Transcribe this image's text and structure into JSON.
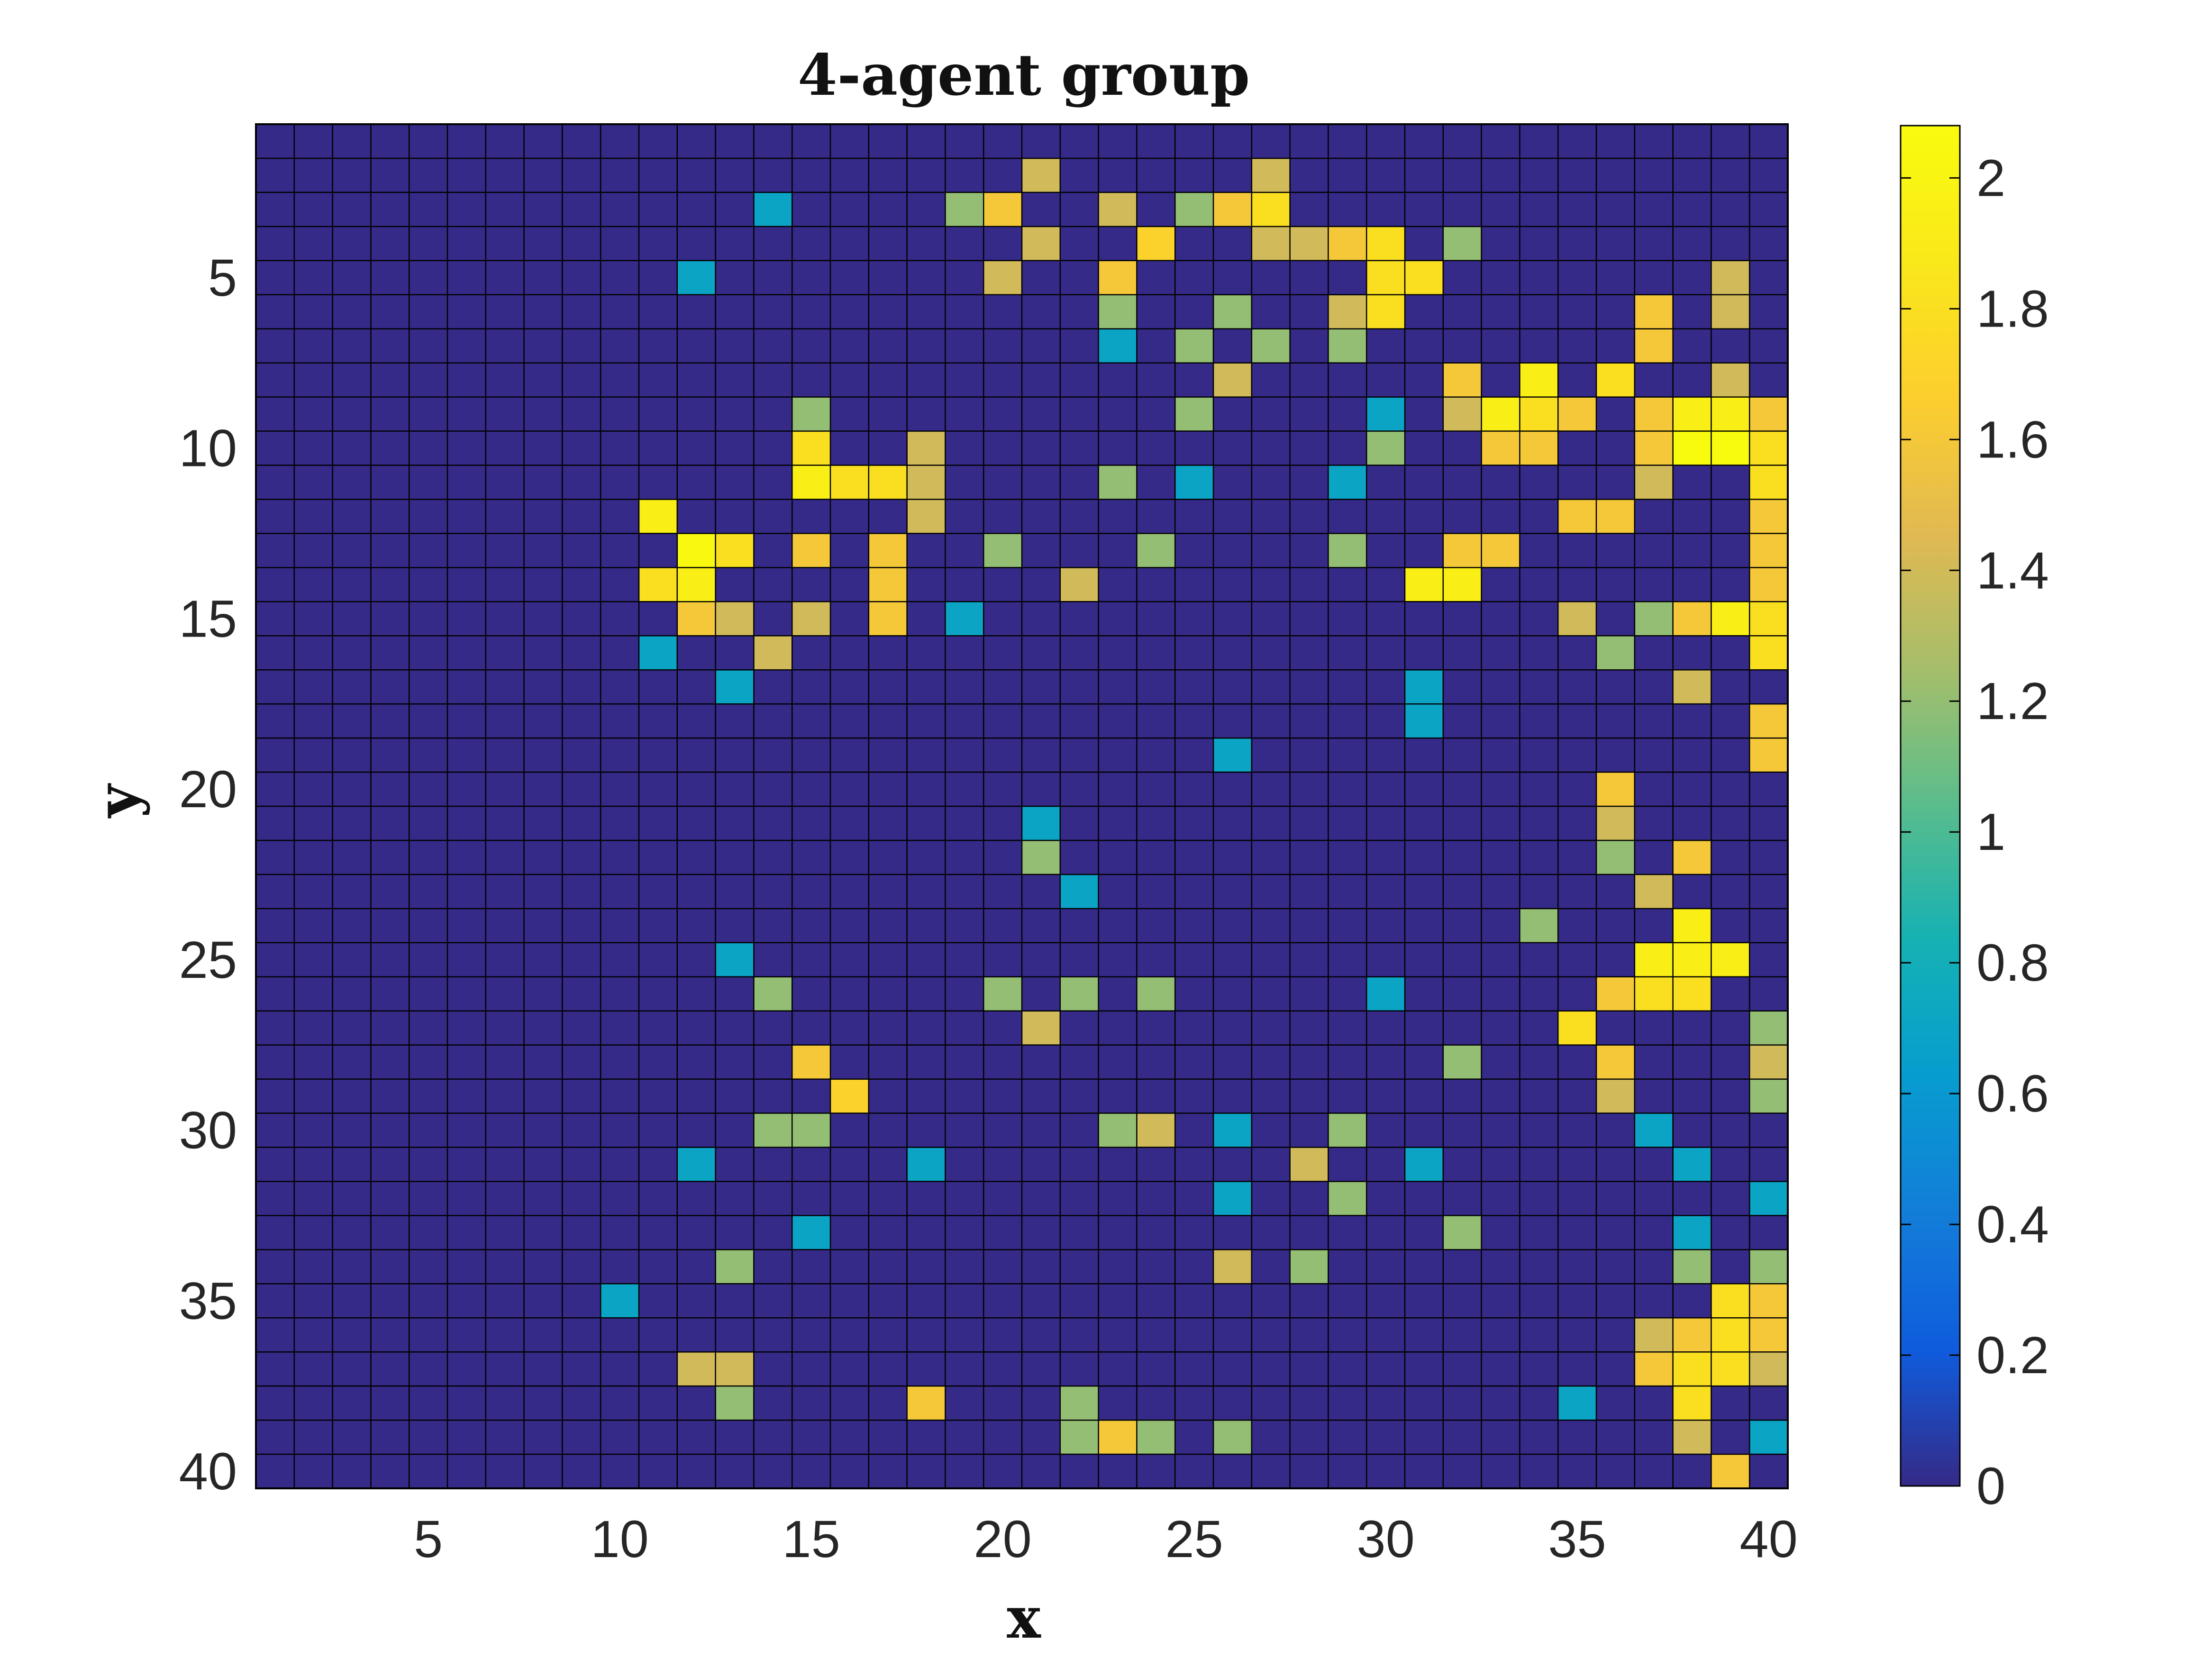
{
  "chart_data": {
    "type": "heatmap",
    "title": "4-agent group",
    "xlabel": "x",
    "ylabel": "y",
    "x_range": [
      1,
      40
    ],
    "y_range": [
      1,
      40
    ],
    "y_axis_direction": "top-to-bottom",
    "grid": true,
    "x_ticks": [
      "5",
      "10",
      "15",
      "20",
      "25",
      "30",
      "35",
      "40"
    ],
    "y_ticks": [
      "5",
      "10",
      "15",
      "20",
      "25",
      "30",
      "35",
      "40"
    ],
    "colorbar": {
      "colormap": "parula",
      "range": [
        0,
        2.08
      ],
      "ticks": [
        "0",
        "0.2",
        "0.4",
        "0.6",
        "0.8",
        "1",
        "1.2",
        "1.4",
        "1.6",
        "1.8",
        "2"
      ]
    },
    "default_value": 0,
    "cells": [
      [
        21,
        2,
        1.4
      ],
      [
        27,
        2,
        1.4
      ],
      [
        14,
        3,
        0.7
      ],
      [
        19,
        3,
        1.2
      ],
      [
        20,
        3,
        1.6
      ],
      [
        23,
        3,
        1.4
      ],
      [
        25,
        3,
        1.2
      ],
      [
        26,
        3,
        1.6
      ],
      [
        27,
        3,
        1.8
      ],
      [
        21,
        4,
        1.4
      ],
      [
        24,
        4,
        1.7
      ],
      [
        27,
        4,
        1.4
      ],
      [
        28,
        4,
        1.4
      ],
      [
        29,
        4,
        1.6
      ],
      [
        30,
        4,
        1.8
      ],
      [
        32,
        4,
        1.2
      ],
      [
        12,
        5,
        0.7
      ],
      [
        20,
        5,
        1.4
      ],
      [
        23,
        5,
        1.6
      ],
      [
        30,
        5,
        1.8
      ],
      [
        31,
        5,
        1.8
      ],
      [
        39,
        5,
        1.4
      ],
      [
        23,
        6,
        1.2
      ],
      [
        26,
        6,
        1.2
      ],
      [
        29,
        6,
        1.4
      ],
      [
        30,
        6,
        1.8
      ],
      [
        37,
        6,
        1.6
      ],
      [
        39,
        6,
        1.4
      ],
      [
        23,
        7,
        0.7
      ],
      [
        25,
        7,
        1.2
      ],
      [
        27,
        7,
        1.2
      ],
      [
        29,
        7,
        1.2
      ],
      [
        37,
        7,
        1.6
      ],
      [
        26,
        8,
        1.4
      ],
      [
        32,
        8,
        1.6
      ],
      [
        34,
        8,
        1.95
      ],
      [
        36,
        8,
        1.8
      ],
      [
        39,
        8,
        1.4
      ],
      [
        15,
        9,
        1.2
      ],
      [
        25,
        9,
        1.2
      ],
      [
        30,
        9,
        0.7
      ],
      [
        32,
        9,
        1.4
      ],
      [
        33,
        9,
        1.95
      ],
      [
        34,
        9,
        1.8
      ],
      [
        35,
        9,
        1.6
      ],
      [
        37,
        9,
        1.6
      ],
      [
        38,
        9,
        1.95
      ],
      [
        39,
        9,
        1.95
      ],
      [
        40,
        9,
        1.6
      ],
      [
        15,
        10,
        1.8
      ],
      [
        18,
        10,
        1.4
      ],
      [
        30,
        10,
        1.2
      ],
      [
        33,
        10,
        1.6
      ],
      [
        34,
        10,
        1.6
      ],
      [
        37,
        10,
        1.6
      ],
      [
        38,
        10,
        2.08
      ],
      [
        39,
        10,
        2.08
      ],
      [
        40,
        10,
        1.8
      ],
      [
        15,
        11,
        1.95
      ],
      [
        16,
        11,
        1.8
      ],
      [
        17,
        11,
        1.8
      ],
      [
        18,
        11,
        1.4
      ],
      [
        23,
        11,
        1.2
      ],
      [
        25,
        11,
        0.7
      ],
      [
        29,
        11,
        0.7
      ],
      [
        37,
        11,
        1.4
      ],
      [
        40,
        11,
        1.8
      ],
      [
        11,
        12,
        1.95
      ],
      [
        18,
        12,
        1.4
      ],
      [
        35,
        12,
        1.6
      ],
      [
        36,
        12,
        1.6
      ],
      [
        40,
        12,
        1.6
      ],
      [
        12,
        13,
        2.05
      ],
      [
        13,
        13,
        1.8
      ],
      [
        15,
        13,
        1.6
      ],
      [
        17,
        13,
        1.6
      ],
      [
        20,
        13,
        1.2
      ],
      [
        24,
        13,
        1.2
      ],
      [
        29,
        13,
        1.2
      ],
      [
        32,
        13,
        1.6
      ],
      [
        33,
        13,
        1.6
      ],
      [
        40,
        13,
        1.6
      ],
      [
        11,
        14,
        1.8
      ],
      [
        12,
        14,
        1.95
      ],
      [
        17,
        14,
        1.6
      ],
      [
        22,
        14,
        1.4
      ],
      [
        31,
        14,
        1.95
      ],
      [
        32,
        14,
        1.95
      ],
      [
        40,
        14,
        1.6
      ],
      [
        12,
        15,
        1.6
      ],
      [
        13,
        15,
        1.4
      ],
      [
        15,
        15,
        1.4
      ],
      [
        17,
        15,
        1.6
      ],
      [
        19,
        15,
        0.7
      ],
      [
        35,
        15,
        1.4
      ],
      [
        37,
        15,
        1.2
      ],
      [
        38,
        15,
        1.6
      ],
      [
        39,
        15,
        1.95
      ],
      [
        40,
        15,
        1.8
      ],
      [
        11,
        16,
        0.7
      ],
      [
        14,
        16,
        1.4
      ],
      [
        36,
        16,
        1.2
      ],
      [
        40,
        16,
        1.8
      ],
      [
        13,
        17,
        0.7
      ],
      [
        31,
        17,
        0.7
      ],
      [
        38,
        17,
        1.4
      ],
      [
        31,
        18,
        0.7
      ],
      [
        40,
        18,
        1.6
      ],
      [
        26,
        19,
        0.7
      ],
      [
        40,
        19,
        1.6
      ],
      [
        36,
        20,
        1.6
      ],
      [
        21,
        21,
        0.7
      ],
      [
        36,
        21,
        1.4
      ],
      [
        21,
        22,
        1.2
      ],
      [
        36,
        22,
        1.2
      ],
      [
        38,
        22,
        1.6
      ],
      [
        22,
        23,
        0.7
      ],
      [
        37,
        23,
        1.4
      ],
      [
        34,
        24,
        1.2
      ],
      [
        38,
        24,
        1.95
      ],
      [
        13,
        25,
        0.7
      ],
      [
        37,
        25,
        1.95
      ],
      [
        38,
        25,
        1.95
      ],
      [
        39,
        25,
        1.95
      ],
      [
        14,
        26,
        1.2
      ],
      [
        20,
        26,
        1.2
      ],
      [
        22,
        26,
        1.2
      ],
      [
        24,
        26,
        1.2
      ],
      [
        30,
        26,
        0.7
      ],
      [
        36,
        26,
        1.6
      ],
      [
        37,
        26,
        1.8
      ],
      [
        38,
        26,
        1.8
      ],
      [
        21,
        27,
        1.4
      ],
      [
        35,
        27,
        1.8
      ],
      [
        40,
        27,
        1.2
      ],
      [
        15,
        28,
        1.6
      ],
      [
        32,
        28,
        1.2
      ],
      [
        36,
        28,
        1.6
      ],
      [
        40,
        28,
        1.4
      ],
      [
        16,
        29,
        1.7
      ],
      [
        36,
        29,
        1.4
      ],
      [
        40,
        29,
        1.2
      ],
      [
        14,
        30,
        1.2
      ],
      [
        15,
        30,
        1.2
      ],
      [
        23,
        30,
        1.2
      ],
      [
        24,
        30,
        1.4
      ],
      [
        26,
        30,
        0.7
      ],
      [
        29,
        30,
        1.2
      ],
      [
        37,
        30,
        0.7
      ],
      [
        12,
        31,
        0.7
      ],
      [
        18,
        31,
        0.7
      ],
      [
        28,
        31,
        1.4
      ],
      [
        31,
        31,
        0.7
      ],
      [
        38,
        31,
        0.7
      ],
      [
        26,
        32,
        0.7
      ],
      [
        29,
        32,
        1.2
      ],
      [
        40,
        32,
        0.7
      ],
      [
        15,
        33,
        0.7
      ],
      [
        32,
        33,
        1.2
      ],
      [
        38,
        33,
        0.7
      ],
      [
        13,
        34,
        1.2
      ],
      [
        26,
        34,
        1.4
      ],
      [
        28,
        34,
        1.2
      ],
      [
        38,
        34,
        1.2
      ],
      [
        40,
        34,
        1.2
      ],
      [
        10,
        35,
        0.7
      ],
      [
        39,
        35,
        1.8
      ],
      [
        40,
        35,
        1.6
      ],
      [
        37,
        36,
        1.4
      ],
      [
        38,
        36,
        1.6
      ],
      [
        39,
        36,
        1.8
      ],
      [
        40,
        36,
        1.6
      ],
      [
        12,
        37,
        1.4
      ],
      [
        13,
        37,
        1.4
      ],
      [
        37,
        37,
        1.6
      ],
      [
        38,
        37,
        1.8
      ],
      [
        39,
        37,
        1.8
      ],
      [
        40,
        37,
        1.4
      ],
      [
        13,
        38,
        1.2
      ],
      [
        18,
        38,
        1.6
      ],
      [
        22,
        38,
        1.2
      ],
      [
        35,
        38,
        0.7
      ],
      [
        38,
        38,
        1.8
      ],
      [
        22,
        39,
        1.2
      ],
      [
        23,
        39,
        1.6
      ],
      [
        24,
        39,
        1.2
      ],
      [
        26,
        39,
        1.2
      ],
      [
        38,
        39,
        1.4
      ],
      [
        40,
        39,
        0.7
      ],
      [
        39,
        40,
        1.6
      ]
    ]
  }
}
